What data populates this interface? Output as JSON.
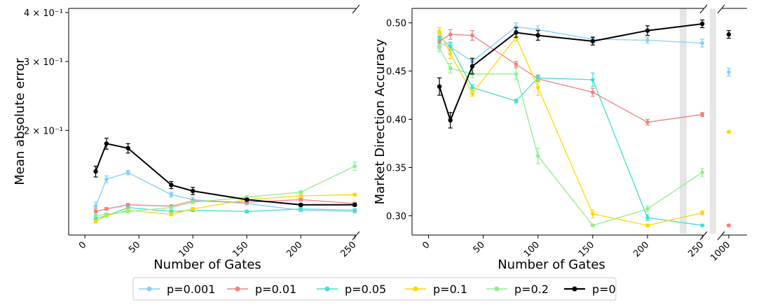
{
  "chart_data": [
    {
      "type": "line",
      "xlabel": "Number of Gates",
      "ylabel": "Mean absolute error",
      "x": [
        10,
        20,
        40,
        80,
        100,
        150,
        200,
        250
      ],
      "xticks": [
        0,
        50,
        100,
        150,
        200,
        250
      ],
      "xlim": [
        -15,
        255
      ],
      "yscale": "log",
      "ylim": [
        0.108,
        0.41
      ],
      "yticks": [
        {
          "value": 0.2,
          "label": "2 × 10⁻¹"
        },
        {
          "value": 0.3,
          "label": "3 × 10⁻¹"
        },
        {
          "value": 0.4,
          "label": "4 × 10⁻¹"
        }
      ],
      "series": [
        {
          "name": "p=0.001",
          "color": "#87cefa",
          "values": [
            0.128,
            0.15,
            0.156,
            0.137,
            0.133,
            0.13,
            0.125,
            0.124
          ],
          "errors": [
            0.003,
            0.003,
            0.002,
            0.002,
            0.002,
            0.001,
            0.001,
            0.001
          ]
        },
        {
          "name": "p=0.01",
          "color": "#f08080",
          "values": [
            0.124,
            0.126,
            0.129,
            0.128,
            0.132,
            0.131,
            0.133,
            0.13
          ],
          "errors": [
            0.002,
            0.001,
            0.001,
            0.001,
            0.001,
            0.001,
            0.001,
            0.001
          ]
        },
        {
          "name": "p=0.05",
          "color": "#40e0d0",
          "values": [
            0.119,
            0.121,
            0.127,
            0.124,
            0.125,
            0.124,
            0.126,
            0.125
          ],
          "errors": [
            0.001,
            0.001,
            0.001,
            0.001,
            0.001,
            0.001,
            0.001,
            0.001
          ]
        },
        {
          "name": "p=0.1",
          "color": "#ffd700",
          "values": [
            0.117,
            0.121,
            0.125,
            0.122,
            0.126,
            0.133,
            0.136,
            0.137
          ],
          "errors": [
            0.001,
            0.001,
            0.001,
            0.001,
            0.001,
            0.001,
            0.001,
            0.001
          ]
        },
        {
          "name": "p=0.2",
          "color": "#90ee90",
          "values": [
            0.121,
            0.122,
            0.124,
            0.127,
            0.131,
            0.135,
            0.139,
            0.162
          ],
          "errors": [
            0.001,
            0.001,
            0.001,
            0.001,
            0.001,
            0.001,
            0.001,
            0.004
          ]
        },
        {
          "name": "p=0",
          "color": "#000000",
          "values": [
            0.157,
            0.185,
            0.18,
            0.145,
            0.14,
            0.133,
            0.129,
            0.129
          ],
          "errors": [
            0.005,
            0.006,
            0.005,
            0.003,
            0.003,
            0.001,
            0.001,
            0.001
          ]
        }
      ]
    },
    {
      "type": "line",
      "xlabel": "Number of Gates",
      "ylabel": "Market Direction Accuracy",
      "x": [
        10,
        20,
        40,
        80,
        100,
        150,
        200,
        250
      ],
      "xticks": [
        0,
        50,
        100,
        150,
        200,
        250
      ],
      "xlim": [
        -15,
        255
      ],
      "break_x": 1000,
      "break_xtick": "1000",
      "ylim": [
        0.28,
        0.515
      ],
      "yticks": [
        0.3,
        0.35,
        0.4,
        0.45,
        0.5
      ],
      "yticklabels": [
        "0.30",
        "0.35",
        "0.40",
        "0.45",
        "0.50"
      ],
      "series": [
        {
          "name": "p=0.001",
          "color": "#87cefa",
          "values": [
            0.479,
            0.475,
            0.46,
            0.496,
            0.493,
            0.483,
            0.482,
            0.479
          ],
          "errors": [
            0.004,
            0.004,
            0.004,
            0.004,
            0.004,
            0.003,
            0.003,
            0.004
          ],
          "break_value": 0.449,
          "break_error": 0.004
        },
        {
          "name": "p=0.01",
          "color": "#f08080",
          "values": [
            0.481,
            0.488,
            0.487,
            0.457,
            0.442,
            0.428,
            0.397,
            0.405
          ],
          "errors": [
            0.005,
            0.005,
            0.005,
            0.003,
            0.003,
            0.004,
            0.003,
            0.002
          ],
          "break_value": 0.29,
          "break_error": 0.001
        },
        {
          "name": "p=0.05",
          "color": "#40e0d0",
          "values": [
            0.485,
            0.476,
            0.433,
            0.419,
            0.443,
            0.441,
            0.298,
            0.29
          ],
          "errors": [
            0.004,
            0.004,
            0.003,
            0.002,
            0.003,
            0.007,
            0.003,
            0.001
          ],
          "break_value": null,
          "break_error": null
        },
        {
          "name": "p=0.1",
          "color": "#ffd700",
          "values": [
            0.491,
            0.468,
            0.427,
            0.485,
            0.433,
            0.302,
            0.29,
            0.303
          ],
          "errors": [
            0.004,
            0.005,
            0.003,
            0.004,
            0.008,
            0.004,
            0.001,
            0.002
          ],
          "break_value": 0.387,
          "break_error": 0.001
        },
        {
          "name": "p=0.2",
          "color": "#90ee90",
          "values": [
            0.474,
            0.453,
            0.447,
            0.447,
            0.362,
            0.29,
            0.307,
            0.345
          ],
          "errors": [
            0.004,
            0.005,
            0.004,
            0.006,
            0.008,
            0.001,
            0.003,
            0.004
          ],
          "break_value": null,
          "break_error": null
        },
        {
          "name": "p=0",
          "color": "#000000",
          "values": [
            0.434,
            0.399,
            0.455,
            0.49,
            0.487,
            0.481,
            0.492,
            0.499
          ],
          "errors": [
            0.009,
            0.008,
            0.008,
            0.005,
            0.005,
            0.004,
            0.005,
            0.004
          ],
          "break_value": 0.488,
          "break_error": 0.004
        }
      ]
    }
  ],
  "legend": {
    "position": "bottom",
    "items": [
      {
        "label": "p=0.001",
        "color": "#87cefa"
      },
      {
        "label": "p=0.01",
        "color": "#f08080"
      },
      {
        "label": "p=0.05",
        "color": "#40e0d0"
      },
      {
        "label": "p=0.1",
        "color": "#ffd700"
      },
      {
        "label": "p=0.2",
        "color": "#90ee90"
      },
      {
        "label": "p=0",
        "color": "#000000"
      }
    ]
  }
}
